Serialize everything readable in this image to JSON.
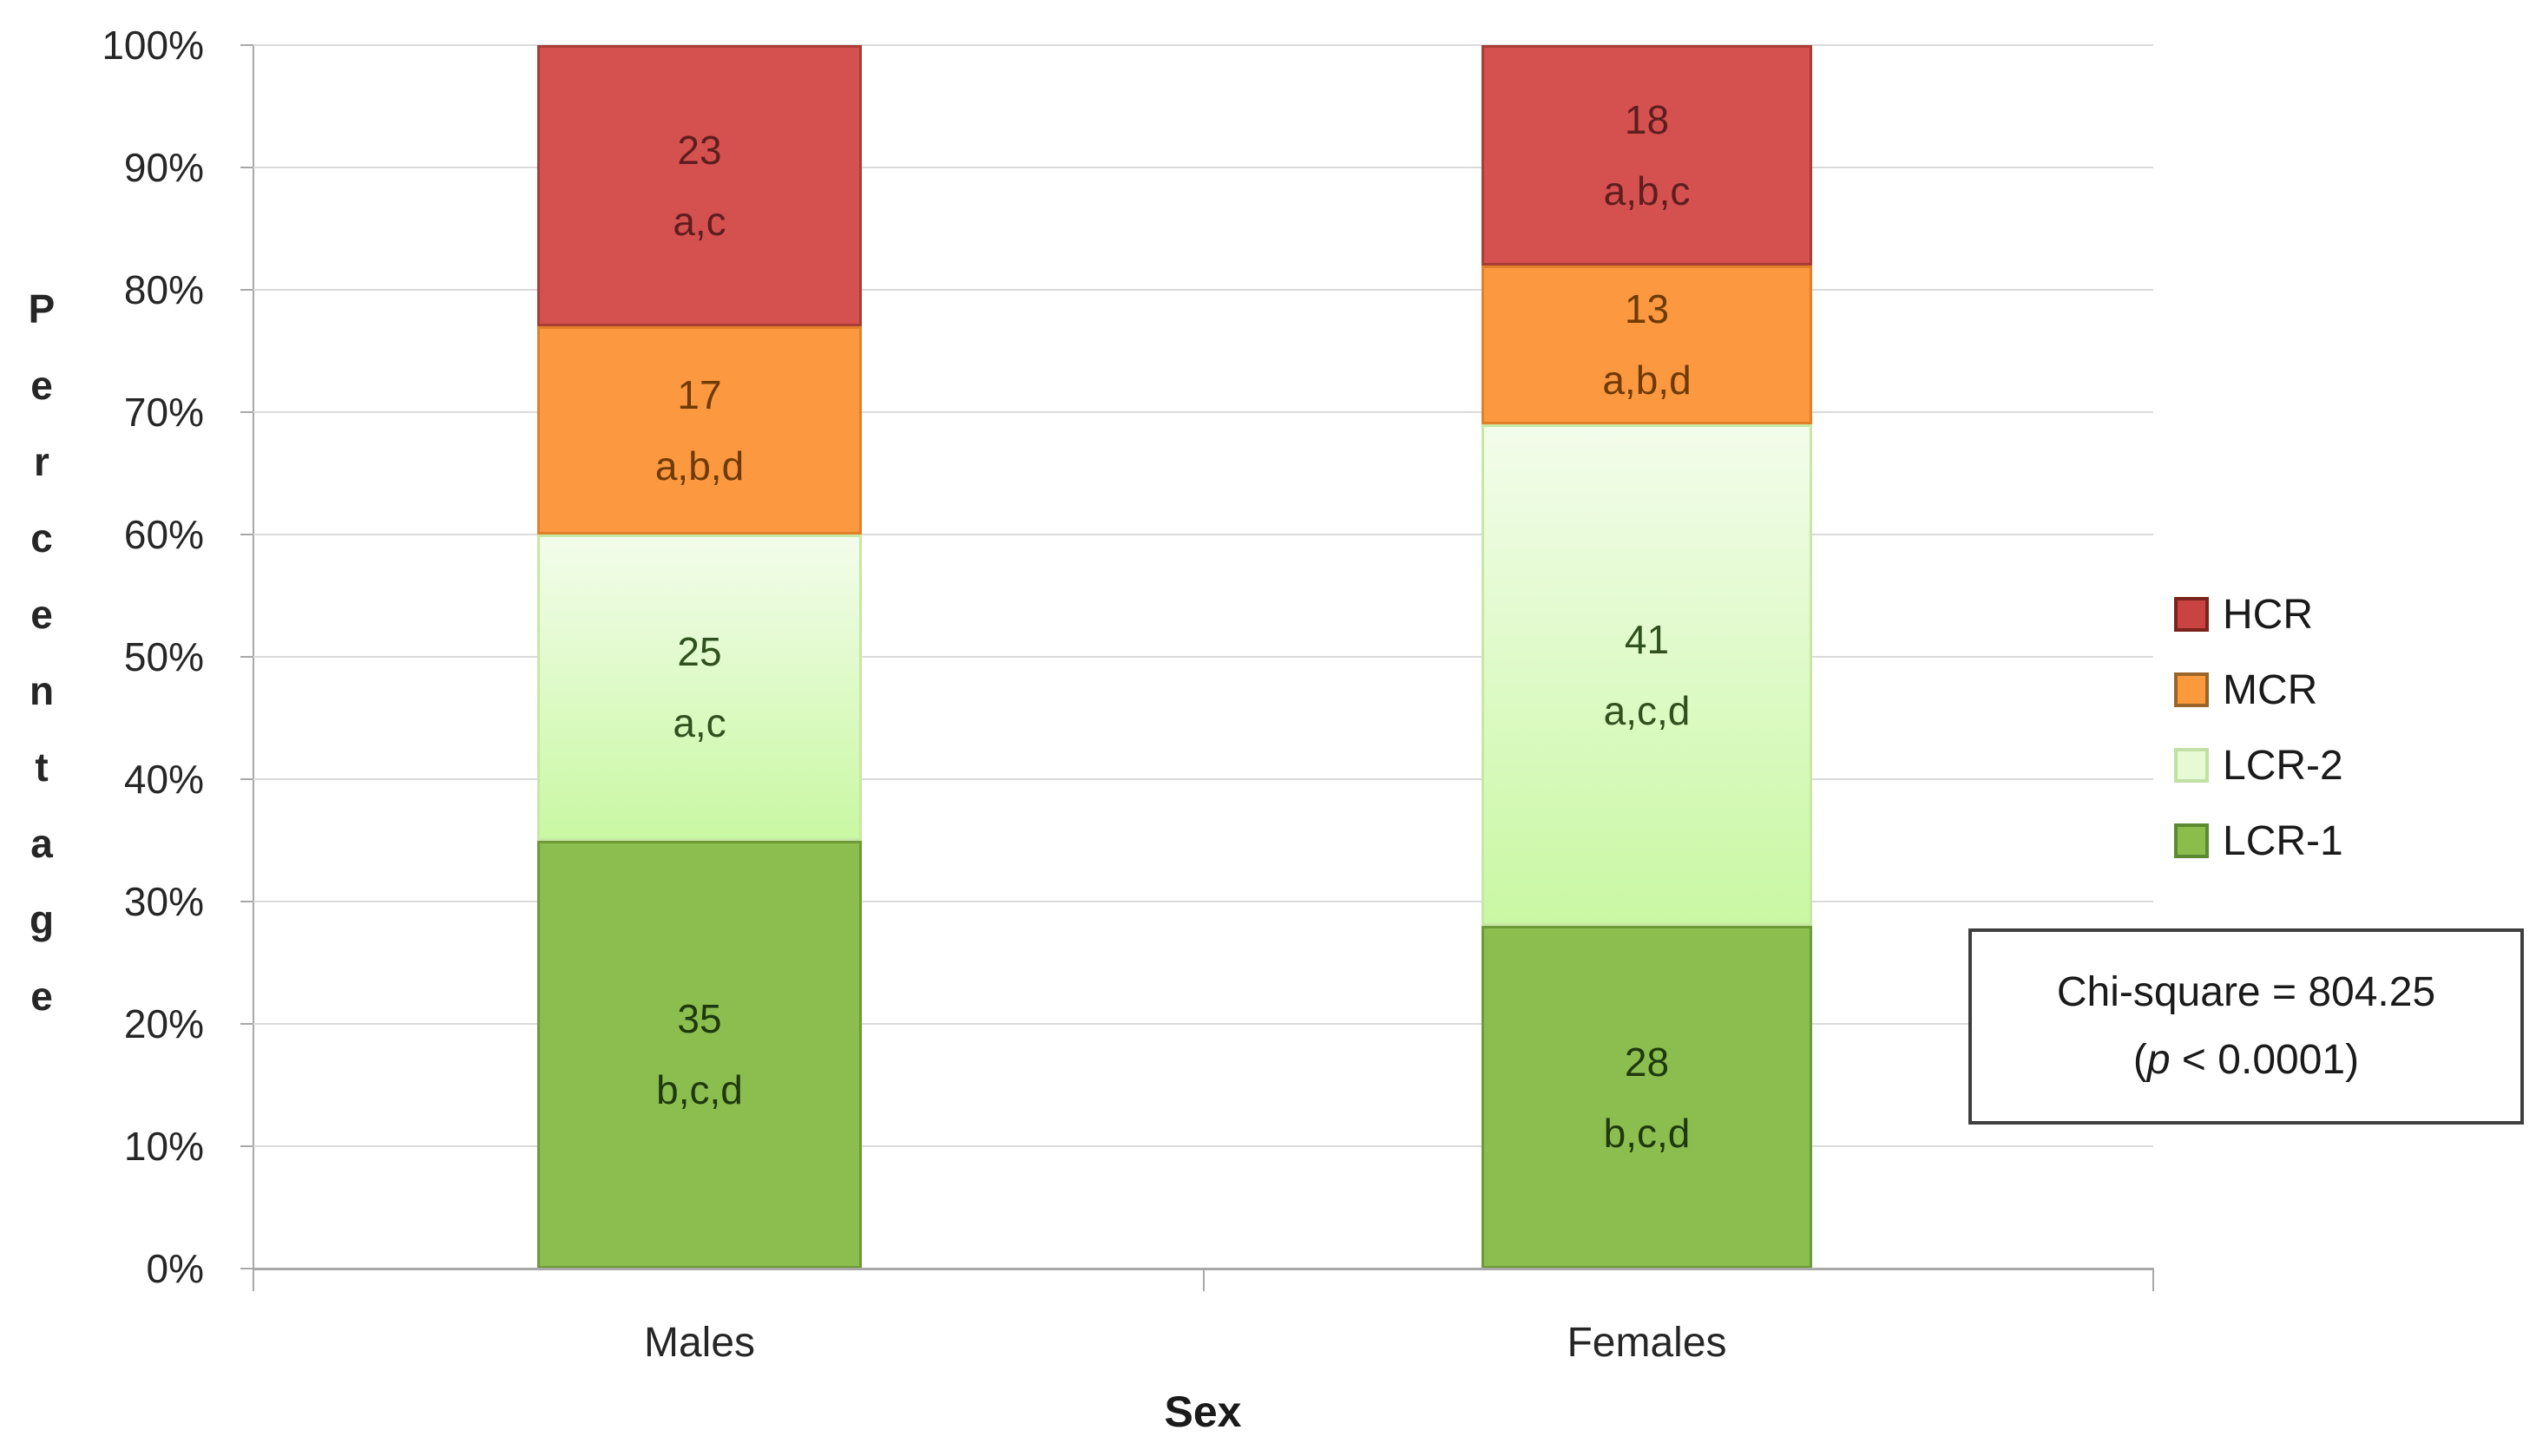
{
  "chart_data": {
    "type": "bar",
    "subtype": "100%-stacked-column",
    "title": "",
    "xlabel": "Sex",
    "ylabel": "Percentage",
    "categories": [
      "Males",
      "Females"
    ],
    "y_ticks": [
      "0%",
      "10%",
      "20%",
      "30%",
      "40%",
      "50%",
      "60%",
      "70%",
      "80%",
      "90%",
      "100%"
    ],
    "ylim": [
      0,
      100
    ],
    "grid": "horizontal",
    "legend_position": "right",
    "stack_order": "bottom-to-top",
    "series": [
      {
        "name": "LCR-1",
        "values": [
          35,
          28
        ],
        "sig_notes": [
          "b,c,d",
          "b,c,d"
        ],
        "fill": "#8CBE4F",
        "border": "#6C9A38",
        "label_color": "#1D390D"
      },
      {
        "name": "LCR-2",
        "values": [
          25,
          41
        ],
        "sig_notes": [
          "a,c",
          "a,c,d"
        ],
        "fill_gradient_top": "#F3FCEB",
        "fill_gradient_bottom": "#C9F8A3",
        "border": "#C6E8A4",
        "label_color": "#30501D"
      },
      {
        "name": "MCR",
        "values": [
          17,
          13
        ],
        "sig_notes": [
          "a,b,d",
          "a,b,d"
        ],
        "fill": "#FC9840",
        "border": "#E2802A",
        "label_color": "#6F3B05"
      },
      {
        "name": "HCR",
        "values": [
          23,
          18
        ],
        "sig_notes": [
          "a,c",
          "a,b,c"
        ],
        "fill": "#D45150",
        "border": "#AA3C36",
        "label_color": "#5E1E1E"
      }
    ]
  },
  "legend": {
    "items": [
      {
        "label": "HCR",
        "fill": "#CA4343",
        "border": "#7B241E"
      },
      {
        "label": "MCR",
        "fill": "#FB9A3C",
        "border": "#99652A"
      },
      {
        "label": "LCR-2",
        "fill": "#E6FAD3",
        "border": "#C2E0A4"
      },
      {
        "label": "LCR-1",
        "fill": "#8ABD4C",
        "border": "#5C8A33"
      }
    ]
  },
  "annotation": {
    "line1": "Chi-square = 804.25",
    "line2_prefix": "(",
    "line2_italic": "p",
    "line2_suffix": " < 0.0001)"
  }
}
